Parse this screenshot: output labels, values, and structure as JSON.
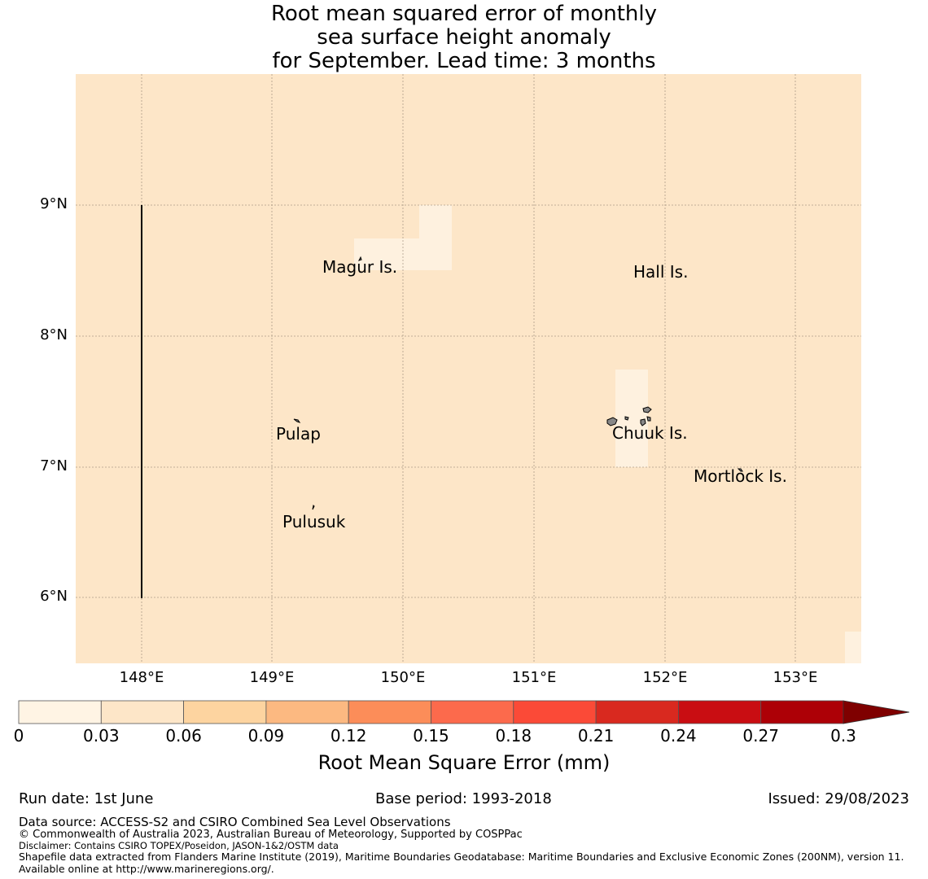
{
  "title": {
    "line1": "Root mean squared error of monthly",
    "line2": "sea surface height anomaly",
    "line3": "for September. Lead time: 3 months"
  },
  "map": {
    "background_color": "#fde6c8",
    "low_value_color": "#fef1df",
    "latitude_labels": [
      "9°N",
      "8°N",
      "7°N",
      "6°N"
    ],
    "longitude_labels": [
      "148°E",
      "149°E",
      "150°E",
      "151°E",
      "152°E",
      "153°E"
    ],
    "places": {
      "magur": "Magur Is.",
      "hall": "Hall Is.",
      "pulap": "Pulap",
      "chuuk": "Chuuk Is.",
      "mortlock": "Mortlock Is.",
      "pulusuk": "Pulusuk"
    }
  },
  "colorbar": {
    "label": "Root Mean Square Error (mm)",
    "ticks": [
      "0",
      "0.03",
      "0.06",
      "0.09",
      "0.12",
      "0.15",
      "0.18",
      "0.21",
      "0.24",
      "0.27",
      "0.3"
    ],
    "colors": [
      "#fff4e4",
      "#fde6c8",
      "#fdd4a0",
      "#fcb981",
      "#fc8d59",
      "#fc6a4c",
      "#fb4a37",
      "#d9291f",
      "#c90d12",
      "#ad0006"
    ],
    "extend_color": "#7f0000"
  },
  "info": {
    "run_date": "Run date: 1st June",
    "base_period": "Base period: 1993-2018",
    "issued": "Issued: 29/08/2023"
  },
  "footer": {
    "source": "Data source: ACCESS-S2 and CSIRO Combined Sea Level Observations",
    "copyright": "© Commonwealth of Australia 2023, Australian Bureau of Meteorology, Supported by COSPPac",
    "disclaimer": "Disclaimer: Contains CSIRO TOPEX/Poseidon, JASON-1&2/OSTM data",
    "shapefile": "Shapefile data extracted from Flanders Marine Institute (2019), Maritime Boundaries Geodatabase: Maritime Boundaries and Exclusive Economic Zones (200NM), version 11. Available online at http://www.marineregions.org/."
  }
}
